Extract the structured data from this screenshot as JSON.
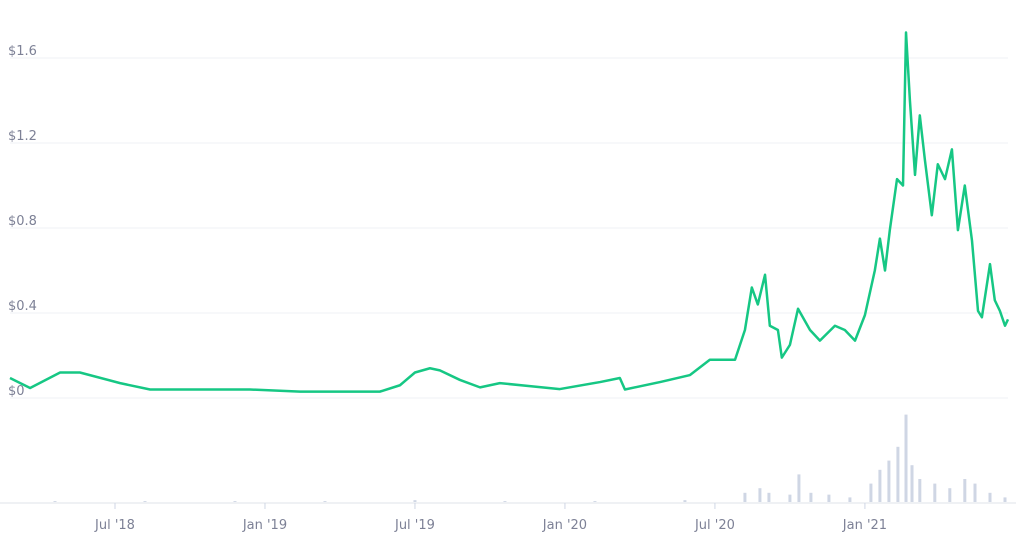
{
  "chart_data": {
    "type": "line",
    "xlim": [
      2018.15,
      2021.477
    ],
    "xticks": [
      {
        "value": 2018.5,
        "label": "Jul '18"
      },
      {
        "value": 2019.0,
        "label": "Jan '19"
      },
      {
        "value": 2019.5,
        "label": "Jul '19"
      },
      {
        "value": 2020.0,
        "label": "Jan '20"
      },
      {
        "value": 2020.5,
        "label": "Jul '20"
      },
      {
        "value": 2021.0,
        "label": "Jan '21"
      }
    ],
    "ylim": [
      0,
      1.6
    ],
    "yticks": [
      {
        "value": 0,
        "label": "$0"
      },
      {
        "value": 0.4,
        "label": "$0.4"
      },
      {
        "value": 0.8,
        "label": "$0.8"
      },
      {
        "value": 1.2,
        "label": "$1.2"
      },
      {
        "value": 1.6,
        "label": "$1.6"
      }
    ],
    "y2lim": [
      0,
      100
    ],
    "grid": true,
    "series": [
      {
        "color": "#16c784",
        "x": [
          2018.15,
          2018.217,
          2018.317,
          2018.383,
          2018.517,
          2018.617,
          2018.783,
          2018.95,
          2019.117,
          2019.25,
          2019.383,
          2019.45,
          2019.5,
          2019.55,
          2019.583,
          2019.65,
          2019.717,
          2019.783,
          2019.883,
          2019.983,
          2020.117,
          2020.183,
          2020.2,
          2020.317,
          2020.417,
          2020.483,
          2020.567,
          2020.6,
          2020.623,
          2020.643,
          2020.667,
          2020.683,
          2020.71,
          2020.723,
          2020.75,
          2020.777,
          2020.817,
          2020.85,
          2020.9,
          2020.933,
          2020.967,
          2021.0,
          2021.033,
          2021.05,
          2021.067,
          2021.083,
          2021.107,
          2021.127,
          2021.137,
          2021.15,
          2021.167,
          2021.183,
          2021.2,
          2021.223,
          2021.243,
          2021.267,
          2021.29,
          2021.31,
          2021.333,
          2021.357,
          2021.377,
          2021.39,
          2021.417,
          2021.433,
          2021.45,
          2021.467,
          2021.477
        ],
        "values": [
          0.094,
          0.047,
          0.12,
          0.12,
          0.07,
          0.04,
          0.04,
          0.04,
          0.03,
          0.03,
          0.03,
          0.06,
          0.12,
          0.14,
          0.13,
          0.085,
          0.05,
          0.07,
          0.056,
          0.042,
          0.075,
          0.094,
          0.04,
          0.075,
          0.108,
          0.18,
          0.18,
          0.32,
          0.52,
          0.44,
          0.58,
          0.34,
          0.32,
          0.19,
          0.25,
          0.42,
          0.32,
          0.27,
          0.34,
          0.32,
          0.27,
          0.39,
          0.6,
          0.75,
          0.6,
          0.79,
          1.03,
          1.0,
          1.72,
          1.4,
          1.05,
          1.33,
          1.12,
          0.86,
          1.1,
          1.03,
          1.17,
          0.79,
          1.0,
          0.74,
          0.41,
          0.38,
          0.63,
          0.46,
          0.41,
          0.34,
          0.37
        ]
      },
      {
        "type": "bar",
        "axis": "y2",
        "color": "#cfd6e4",
        "x": [
          2018.3,
          2018.6,
          2018.9,
          2019.2,
          2019.5,
          2019.8,
          2020.1,
          2020.4,
          2020.6,
          2020.65,
          2020.68,
          2020.75,
          2020.78,
          2020.82,
          2020.88,
          2020.95,
          2021.02,
          2021.05,
          2021.08,
          2021.11,
          2021.137,
          2021.157,
          2021.183,
          2021.233,
          2021.283,
          2021.333,
          2021.367,
          2021.417,
          2021.467
        ],
        "values": [
          1,
          1,
          1,
          1,
          2,
          1,
          1,
          2,
          10,
          15,
          10,
          8,
          30,
          10,
          8,
          5,
          20,
          35,
          45,
          60,
          95,
          40,
          25,
          20,
          15,
          25,
          20,
          10,
          5
        ]
      }
    ]
  }
}
